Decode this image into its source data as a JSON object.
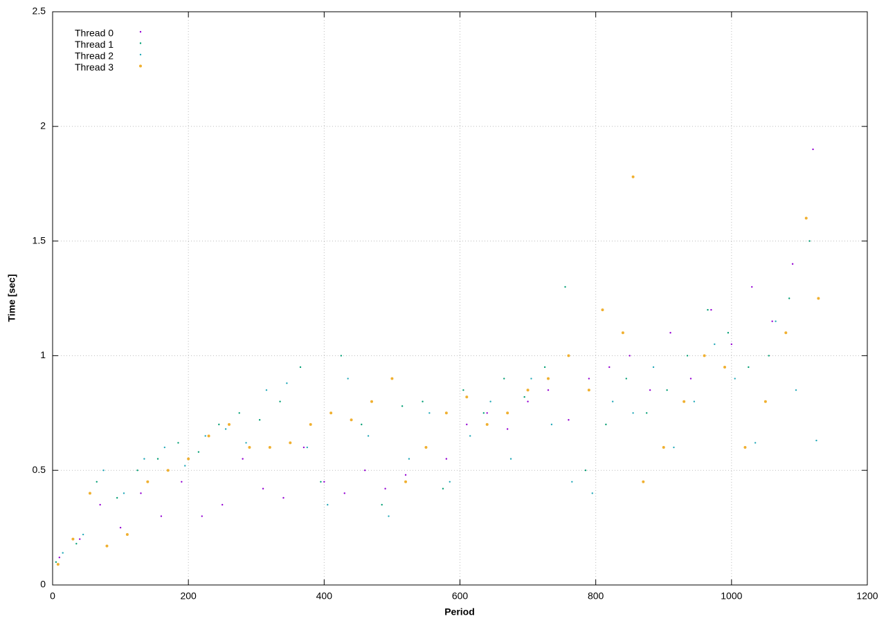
{
  "chart_data": {
    "type": "scatter",
    "x_label": "Period",
    "y_label": "Time [sec]",
    "xlim": [
      0,
      1200
    ],
    "ylim": [
      0,
      2.5
    ],
    "xticks": [
      0,
      200,
      400,
      600,
      800,
      1000,
      1200
    ],
    "yticks": [
      0,
      0.5,
      1,
      1.5,
      2,
      2.5
    ],
    "grid": true,
    "legend": "top-left",
    "series": [
      {
        "name": "Thread 0",
        "color": "#9400d3",
        "size": 1.2,
        "x": [
          10,
          40,
          70,
          100,
          130,
          160,
          190,
          220,
          250,
          280,
          310,
          340,
          370,
          400,
          430,
          460,
          490,
          520,
          550,
          580,
          610,
          640,
          670,
          700,
          730,
          760,
          790,
          820,
          850,
          880,
          910,
          940,
          970,
          1000,
          1030,
          1060,
          1090,
          1120
        ],
        "values": [
          0.12,
          0.2,
          0.35,
          0.25,
          0.4,
          0.3,
          0.45,
          0.3,
          0.35,
          0.55,
          0.42,
          0.38,
          0.6,
          0.45,
          0.4,
          0.5,
          0.42,
          0.48,
          0.6,
          0.55,
          0.7,
          0.75,
          0.68,
          0.8,
          0.85,
          0.72,
          0.9,
          0.95,
          1.0,
          0.85,
          1.1,
          0.9,
          1.2,
          1.05,
          1.3,
          1.15,
          1.4,
          1.9
        ]
      },
      {
        "name": "Thread 1",
        "color": "#009e73",
        "size": 1.2,
        "x": [
          5,
          35,
          65,
          95,
          125,
          155,
          185,
          215,
          245,
          275,
          305,
          335,
          365,
          395,
          425,
          455,
          485,
          515,
          545,
          575,
          605,
          635,
          665,
          695,
          725,
          755,
          785,
          815,
          845,
          875,
          905,
          935,
          965,
          995,
          1025,
          1055,
          1085,
          1115
        ],
        "values": [
          0.1,
          0.18,
          0.45,
          0.38,
          0.5,
          0.55,
          0.62,
          0.58,
          0.7,
          0.75,
          0.72,
          0.8,
          0.95,
          0.45,
          1.0,
          0.7,
          0.35,
          0.78,
          0.8,
          0.42,
          0.85,
          0.75,
          0.9,
          0.82,
          0.95,
          1.3,
          0.5,
          0.7,
          0.9,
          0.75,
          0.85,
          1.0,
          1.2,
          1.1,
          0.95,
          1.0,
          1.25,
          1.5
        ]
      },
      {
        "name": "Thread 2",
        "color": "#21a8b8",
        "size": 1.2,
        "x": [
          15,
          45,
          75,
          105,
          135,
          165,
          195,
          225,
          255,
          285,
          315,
          345,
          375,
          405,
          435,
          465,
          495,
          525,
          555,
          585,
          615,
          645,
          675,
          705,
          735,
          765,
          795,
          825,
          855,
          885,
          915,
          945,
          975,
          1005,
          1035,
          1065,
          1095,
          1125
        ],
        "values": [
          0.14,
          0.22,
          0.5,
          0.4,
          0.55,
          0.6,
          0.52,
          0.65,
          0.68,
          0.62,
          0.85,
          0.88,
          0.6,
          0.35,
          0.9,
          0.65,
          0.3,
          0.55,
          0.75,
          0.45,
          0.65,
          0.8,
          0.55,
          0.9,
          0.7,
          0.45,
          0.4,
          0.8,
          0.75,
          0.95,
          0.6,
          0.8,
          1.05,
          0.9,
          0.62,
          1.15,
          0.85,
          0.63
        ]
      },
      {
        "name": "Thread 3",
        "color": "#f0b030",
        "size": 2,
        "x": [
          8,
          30,
          55,
          80,
          110,
          140,
          170,
          200,
          230,
          260,
          290,
          320,
          350,
          380,
          410,
          440,
          470,
          500,
          520,
          550,
          580,
          610,
          640,
          670,
          700,
          730,
          760,
          790,
          810,
          840,
          855,
          870,
          900,
          930,
          960,
          990,
          1020,
          1050,
          1080,
          1110,
          1128
        ],
        "values": [
          0.09,
          0.2,
          0.4,
          0.17,
          0.22,
          0.45,
          0.5,
          0.55,
          0.65,
          0.7,
          0.6,
          0.6,
          0.62,
          0.7,
          0.75,
          0.72,
          0.8,
          0.9,
          0.45,
          0.6,
          0.75,
          0.82,
          0.7,
          0.75,
          0.85,
          0.9,
          1.0,
          0.85,
          1.2,
          1.1,
          1.78,
          0.45,
          0.6,
          0.8,
          1.0,
          0.95,
          0.6,
          0.8,
          1.1,
          1.6,
          1.25
        ]
      }
    ]
  }
}
